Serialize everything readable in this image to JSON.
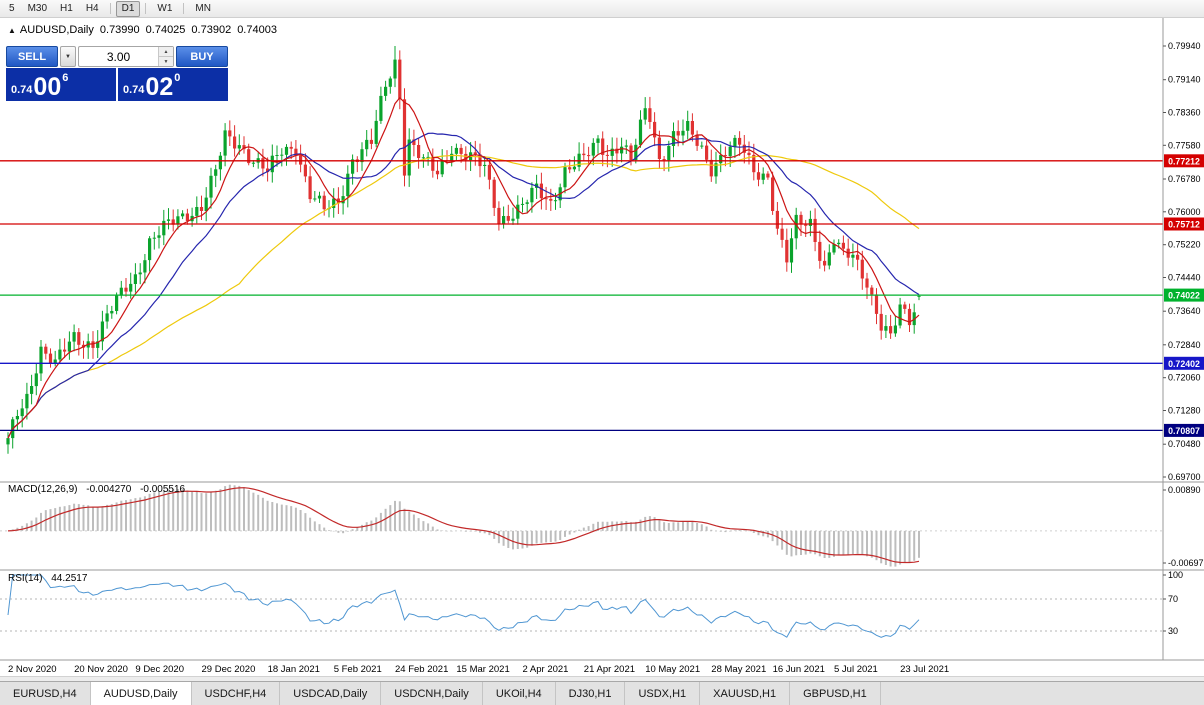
{
  "toolbar": {
    "timeframes": [
      {
        "label": "5",
        "active": false
      },
      {
        "label": "M30",
        "active": false
      },
      {
        "label": "H1",
        "active": false
      },
      {
        "label": "H4",
        "active": false
      },
      {
        "label": "D1",
        "active": true
      },
      {
        "label": "W1",
        "active": false
      },
      {
        "label": "MN",
        "active": false
      }
    ]
  },
  "chart_header": {
    "symbol": "AUDUSD,Daily",
    "open": "0.73990",
    "high": "0.74025",
    "low": "0.73902",
    "close": "0.74003"
  },
  "trade_panel": {
    "sell_label": "SELL",
    "buy_label": "BUY",
    "lot": "3.00",
    "sell_price": {
      "prefix": "0.74",
      "big": "00",
      "sup": "6"
    },
    "buy_price": {
      "prefix": "0.74",
      "big": "02",
      "sup": "0"
    }
  },
  "price_axis": {
    "ticks": [
      "0.79940",
      "0.79140",
      "0.78360",
      "0.77580",
      "0.76780",
      "0.76000",
      "0.75220",
      "0.74440",
      "0.73640",
      "0.72840",
      "0.72060",
      "0.71280",
      "0.70480",
      "0.69700"
    ]
  },
  "hlines": [
    {
      "label": "0.77212",
      "value": 0.77212,
      "color": "#d40000"
    },
    {
      "label": "0.75712",
      "value": 0.75712,
      "color": "#d40000"
    },
    {
      "label": "0.74022",
      "value": 0.74022,
      "color": "#00b22d"
    },
    {
      "label": "0.72402",
      "value": 0.72402,
      "color": "#1616c8"
    },
    {
      "label": "0.70807",
      "value": 0.70807,
      "color": "#000080"
    }
  ],
  "macd": {
    "label": "MACD(12,26,9)",
    "value_main": "-0.004270",
    "value_signal": "-0.005516",
    "axis_ticks": [
      {
        "label": "0.00890",
        "value": 0.0089
      },
      {
        "label": "-0.00697",
        "value": -0.00697
      }
    ],
    "histogram_color": "#bdbdbd",
    "signal_color": "#c22929"
  },
  "rsi": {
    "label": "RSI(14)",
    "value": "44.2517",
    "axis_ticks": [
      {
        "label": "100",
        "value": 100
      },
      {
        "label": "70",
        "value": 70
      },
      {
        "label": "30",
        "value": 30
      }
    ],
    "levels": [
      70,
      30
    ],
    "line_color": "#4f96d2"
  },
  "date_axis": [
    {
      "label": "2 Nov 2020",
      "bar": 0
    },
    {
      "label": "20 Nov 2020",
      "bar": 14
    },
    {
      "label": "9 Dec 2020",
      "bar": 27
    },
    {
      "label": "29 Dec 2020",
      "bar": 41
    },
    {
      "label": "18 Jan 2021",
      "bar": 55
    },
    {
      "label": "5 Feb 2021",
      "bar": 69
    },
    {
      "label": "24 Feb 2021",
      "bar": 82
    },
    {
      "label": "15 Mar 2021",
      "bar": 95
    },
    {
      "label": "2 Apr 2021",
      "bar": 109
    },
    {
      "label": "21 Apr 2021",
      "bar": 122
    },
    {
      "label": "10 May 2021",
      "bar": 135
    },
    {
      "label": "28 May 2021",
      "bar": 149
    },
    {
      "label": "16 Jun 2021",
      "bar": 162
    },
    {
      "label": "5 Jul 2021",
      "bar": 175
    },
    {
      "label": "23 Jul 2021",
      "bar": 189
    }
  ],
  "tabs": [
    {
      "label": "EURUSD,H4",
      "active": false
    },
    {
      "label": "AUDUSD,Daily",
      "active": true
    },
    {
      "label": "USDCHF,H4",
      "active": false
    },
    {
      "label": "USDCAD,Daily",
      "active": false
    },
    {
      "label": "USDCNH,Daily",
      "active": false
    },
    {
      "label": "UKOil,H4",
      "active": false
    },
    {
      "label": "DJ30,H1",
      "active": false
    },
    {
      "label": "USDX,H1",
      "active": false
    },
    {
      "label": "XAUUSD,H1",
      "active": false
    },
    {
      "label": "GBPUSD,H1",
      "active": false
    }
  ],
  "chart_data": {
    "type": "candlestick",
    "symbol": "AUDUSD",
    "timeframe": "Daily",
    "bars": 194,
    "price_range": {
      "min": 0.697,
      "max": 0.7994
    },
    "up_color": "#0aa32c",
    "down_color": "#e03232",
    "wiggle": 0.0013,
    "close_anchors": [
      [
        0,
        0.705
      ],
      [
        2,
        0.7115
      ],
      [
        4,
        0.716
      ],
      [
        7,
        0.728
      ],
      [
        10,
        0.7235
      ],
      [
        14,
        0.73
      ],
      [
        18,
        0.729
      ],
      [
        22,
        0.7365
      ],
      [
        25,
        0.742
      ],
      [
        27,
        0.745
      ],
      [
        30,
        0.753
      ],
      [
        34,
        0.7565
      ],
      [
        38,
        0.76
      ],
      [
        41,
        0.7615
      ],
      [
        44,
        0.769
      ],
      [
        46,
        0.7775
      ],
      [
        49,
        0.7765
      ],
      [
        52,
        0.7725
      ],
      [
        55,
        0.769
      ],
      [
        58,
        0.7745
      ],
      [
        61,
        0.776
      ],
      [
        64,
        0.764
      ],
      [
        67,
        0.76
      ],
      [
        70,
        0.7625
      ],
      [
        73,
        0.773
      ],
      [
        77,
        0.776
      ],
      [
        80,
        0.79
      ],
      [
        82,
        0.796
      ],
      [
        83,
        0.788
      ],
      [
        84,
        0.771
      ],
      [
        85,
        0.777
      ],
      [
        88,
        0.7715
      ],
      [
        91,
        0.769
      ],
      [
        94,
        0.776
      ],
      [
        97,
        0.7735
      ],
      [
        101,
        0.77
      ],
      [
        104,
        0.7585
      ],
      [
        107,
        0.76
      ],
      [
        109,
        0.761
      ],
      [
        112,
        0.765
      ],
      [
        115,
        0.7625
      ],
      [
        118,
        0.77
      ],
      [
        122,
        0.772
      ],
      [
        125,
        0.777
      ],
      [
        127,
        0.7745
      ],
      [
        130,
        0.776
      ],
      [
        132,
        0.7715
      ],
      [
        135,
        0.784
      ],
      [
        136,
        0.783
      ],
      [
        138,
        0.773
      ],
      [
        141,
        0.778
      ],
      [
        144,
        0.779
      ],
      [
        147,
        0.775
      ],
      [
        149,
        0.771
      ],
      [
        152,
        0.7745
      ],
      [
        155,
        0.7755
      ],
      [
        158,
        0.77
      ],
      [
        161,
        0.769
      ],
      [
        163,
        0.7555
      ],
      [
        165,
        0.748
      ],
      [
        167,
        0.757
      ],
      [
        170,
        0.758
      ],
      [
        173,
        0.747
      ],
      [
        175,
        0.753
      ],
      [
        177,
        0.749
      ],
      [
        179,
        0.7495
      ],
      [
        182,
        0.744
      ],
      [
        185,
        0.733
      ],
      [
        187,
        0.7295
      ],
      [
        189,
        0.7365
      ],
      [
        191,
        0.7345
      ],
      [
        193,
        0.74
      ]
    ],
    "overrides": {
      "82": {
        "h": 0.7994
      },
      "193": {
        "o": 0.7399,
        "h": 0.74025,
        "l": 0.73902,
        "c": 0.74003
      }
    },
    "moving_averages": [
      {
        "period": 7,
        "color": "#cc1414"
      },
      {
        "period": 18,
        "color": "#2626ae"
      },
      {
        "period": 50,
        "color": "#eec90c"
      }
    ],
    "indicators": {
      "macd": {
        "fast": 12,
        "slow": 26,
        "signal": 9
      },
      "rsi": {
        "period": 14
      }
    }
  }
}
